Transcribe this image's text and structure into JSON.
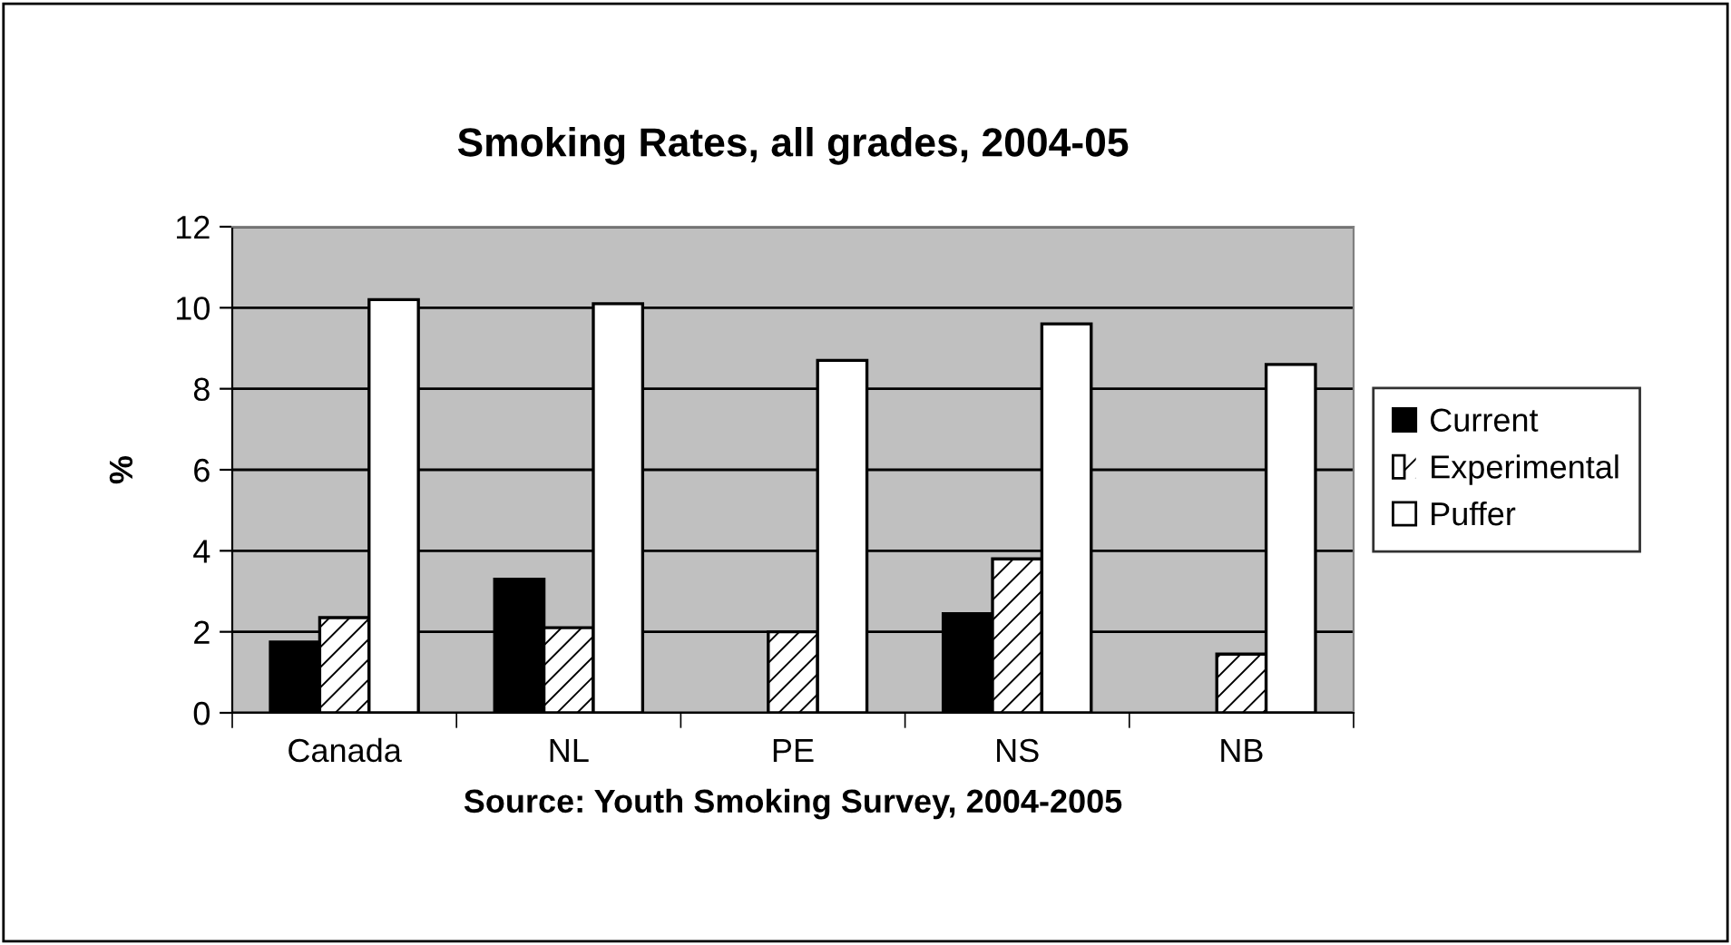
{
  "chart_data": {
    "type": "bar",
    "title": "Smoking Rates, all grades, 2004-05",
    "xlabel": "Source: Youth Smoking Survey, 2004-2005",
    "ylabel": "%",
    "categories": [
      "Canada",
      "NL",
      "PE",
      "NS",
      "NB"
    ],
    "series": [
      {
        "name": "Current",
        "color": "#000000",
        "values": [
          1.75,
          3.3,
          null,
          2.45,
          null
        ]
      },
      {
        "name": "Experimental",
        "color": "#ffffff",
        "values": [
          2.35,
          2.1,
          2.0,
          3.8,
          1.45
        ]
      },
      {
        "name": "Puffer",
        "color": "#ffffff",
        "values": [
          10.2,
          10.1,
          8.7,
          9.6,
          8.6
        ]
      }
    ],
    "ylim": [
      0,
      12
    ],
    "yticks": [
      0,
      2,
      4,
      6,
      8,
      10,
      12
    ],
    "grid": "y",
    "legend": "right"
  }
}
